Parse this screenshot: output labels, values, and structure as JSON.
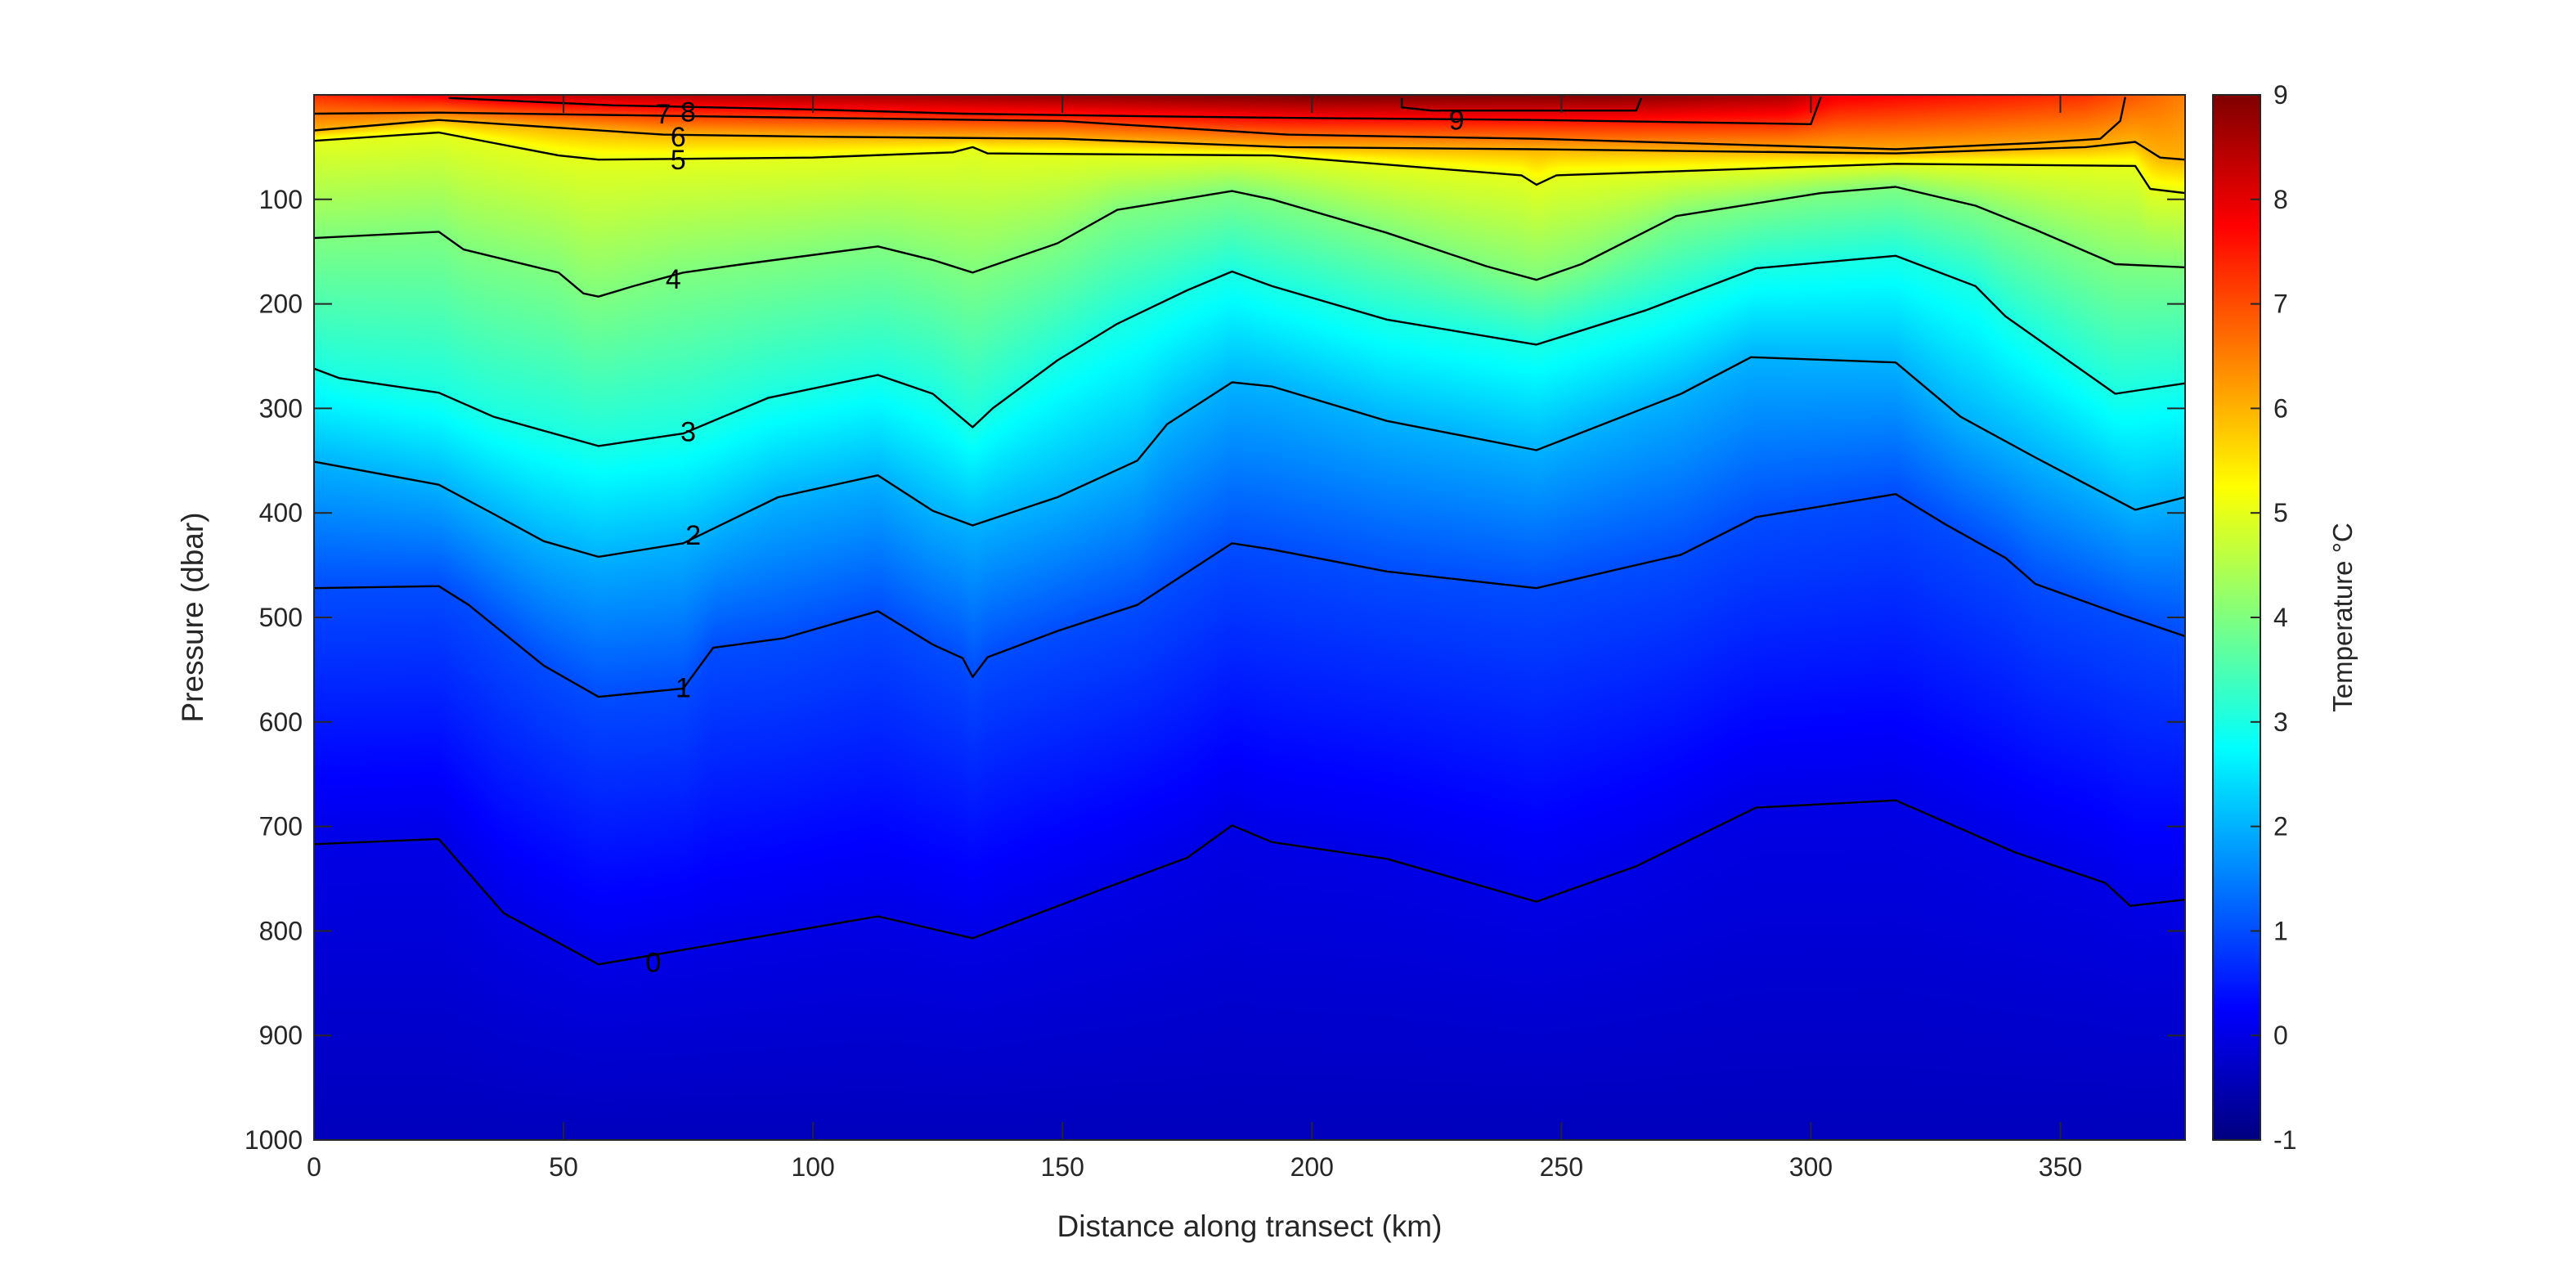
{
  "chart_data": {
    "type": "heatmap",
    "title": "",
    "xlabel": "Distance along transect (km)",
    "ylabel": "Pressure (dbar)",
    "colorbar_label": "Temperature °C",
    "colormap": "jet",
    "xlim": [
      0,
      375
    ],
    "ylim": [
      0,
      1000
    ],
    "y_reversed": true,
    "grid": false,
    "xticks": [
      "0",
      "50",
      "100",
      "150",
      "200",
      "250",
      "300",
      "350"
    ],
    "yticks": [
      "100",
      "200",
      "300",
      "400",
      "500",
      "600",
      "700",
      "800",
      "900",
      "1000"
    ],
    "colorbar": {
      "range": [
        -1,
        9
      ],
      "ticks": [
        "-1",
        "0",
        "1",
        "2",
        "3",
        "4",
        "5",
        "6",
        "7",
        "8",
        "9"
      ]
    },
    "surface_temperature": [
      [
        0,
        7.3
      ],
      [
        20,
        7.8
      ],
      [
        40,
        8.3
      ],
      [
        100,
        8.6
      ],
      [
        200,
        9.1
      ],
      [
        260,
        9.0
      ],
      [
        295,
        8.6
      ],
      [
        305,
        7.9
      ],
      [
        330,
        7.6
      ],
      [
        355,
        7.3
      ],
      [
        375,
        6.5
      ]
    ],
    "bottom_temperature": -0.4,
    "isotherms": [
      {
        "level": 0,
        "label": "0",
        "label_at": [
          68,
          830
        ],
        "points": [
          [
            0,
            717
          ],
          [
            25,
            712
          ],
          [
            38,
            783
          ],
          [
            57,
            832
          ],
          [
            113,
            786
          ],
          [
            132,
            807
          ],
          [
            158,
            760
          ],
          [
            175,
            730
          ],
          [
            184,
            699
          ],
          [
            192,
            715
          ],
          [
            215,
            731
          ],
          [
            245,
            772
          ],
          [
            265,
            738
          ],
          [
            289,
            682
          ],
          [
            317,
            675
          ],
          [
            341,
            725
          ],
          [
            359,
            754
          ],
          [
            364,
            776
          ],
          [
            375,
            770
          ]
        ]
      },
      {
        "level": 1,
        "label": "1",
        "label_at": [
          74,
          567
        ],
        "points": [
          [
            0,
            472
          ],
          [
            25,
            470
          ],
          [
            31,
            488
          ],
          [
            46,
            546
          ],
          [
            57,
            576
          ],
          [
            74,
            568
          ],
          [
            80,
            529
          ],
          [
            94,
            520
          ],
          [
            113,
            494
          ],
          [
            124,
            526
          ],
          [
            130,
            539
          ],
          [
            132,
            557
          ],
          [
            135,
            538
          ],
          [
            149,
            513
          ],
          [
            165,
            488
          ],
          [
            184,
            429
          ],
          [
            192,
            435
          ],
          [
            215,
            456
          ],
          [
            245,
            472
          ],
          [
            274,
            440
          ],
          [
            289,
            404
          ],
          [
            317,
            382
          ],
          [
            327,
            411
          ],
          [
            339,
            443
          ],
          [
            345,
            468
          ],
          [
            362,
            497
          ],
          [
            375,
            518
          ]
        ]
      },
      {
        "level": 2,
        "label": "2",
        "label_at": [
          76,
          421
        ],
        "points": [
          [
            0,
            351
          ],
          [
            25,
            373
          ],
          [
            36,
            401
          ],
          [
            46,
            427
          ],
          [
            57,
            442
          ],
          [
            74,
            429
          ],
          [
            93,
            385
          ],
          [
            113,
            364
          ],
          [
            124,
            398
          ],
          [
            132,
            412
          ],
          [
            149,
            385
          ],
          [
            165,
            350
          ],
          [
            171,
            315
          ],
          [
            184,
            275
          ],
          [
            192,
            279
          ],
          [
            215,
            312
          ],
          [
            245,
            340
          ],
          [
            274,
            286
          ],
          [
            288,
            251
          ],
          [
            317,
            256
          ],
          [
            330,
            308
          ],
          [
            345,
            347
          ],
          [
            365,
            397
          ],
          [
            375,
            385
          ]
        ]
      },
      {
        "level": 3,
        "label": "3",
        "label_at": [
          75,
          322
        ],
        "points": [
          [
            0,
            262
          ],
          [
            5,
            271
          ],
          [
            25,
            285
          ],
          [
            36,
            308
          ],
          [
            57,
            336
          ],
          [
            74,
            324
          ],
          [
            91,
            290
          ],
          [
            113,
            268
          ],
          [
            124,
            286
          ],
          [
            132,
            318
          ],
          [
            136,
            300
          ],
          [
            149,
            254
          ],
          [
            161,
            219
          ],
          [
            175,
            187
          ],
          [
            184,
            169
          ],
          [
            192,
            183
          ],
          [
            215,
            215
          ],
          [
            245,
            239
          ],
          [
            267,
            206
          ],
          [
            289,
            166
          ],
          [
            317,
            154
          ],
          [
            333,
            183
          ],
          [
            339,
            212
          ],
          [
            361,
            286
          ],
          [
            375,
            276
          ]
        ]
      },
      {
        "level": 4,
        "label": "4",
        "label_at": [
          72,
          176
        ],
        "points": [
          [
            0,
            137
          ],
          [
            25,
            131
          ],
          [
            30,
            148
          ],
          [
            49,
            170
          ],
          [
            54,
            190
          ],
          [
            57,
            193
          ],
          [
            64,
            183
          ],
          [
            74,
            170
          ],
          [
            86,
            162
          ],
          [
            113,
            145
          ],
          [
            124,
            158
          ],
          [
            132,
            170
          ],
          [
            149,
            142
          ],
          [
            161,
            110
          ],
          [
            184,
            92
          ],
          [
            192,
            100
          ],
          [
            215,
            132
          ],
          [
            235,
            164
          ],
          [
            245,
            177
          ],
          [
            254,
            162
          ],
          [
            273,
            116
          ],
          [
            302,
            94
          ],
          [
            317,
            88
          ],
          [
            333,
            106
          ],
          [
            345,
            129
          ],
          [
            361,
            162
          ],
          [
            375,
            165
          ]
        ]
      },
      {
        "level": 5,
        "label": "5",
        "label_at": [
          73,
          62
        ],
        "points": [
          [
            0,
            44
          ],
          [
            25,
            36
          ],
          [
            49,
            58
          ],
          [
            57,
            62
          ],
          [
            100,
            60
          ],
          [
            128,
            55
          ],
          [
            132,
            50
          ],
          [
            135,
            56
          ],
          [
            192,
            58
          ],
          [
            242,
            77
          ],
          [
            245,
            86
          ],
          [
            249,
            77
          ],
          [
            317,
            66
          ],
          [
            365,
            68
          ],
          [
            368,
            90
          ],
          [
            375,
            94
          ]
        ]
      },
      {
        "level": 6,
        "label": "6",
        "label_at": [
          73,
          40
        ],
        "points": [
          [
            0,
            34
          ],
          [
            25,
            24
          ],
          [
            70,
            38
          ],
          [
            100,
            40
          ],
          [
            150,
            42
          ],
          [
            195,
            50
          ],
          [
            245,
            52
          ],
          [
            317,
            56
          ],
          [
            355,
            50
          ],
          [
            365,
            45
          ],
          [
            370,
            60
          ],
          [
            375,
            62
          ]
        ]
      },
      {
        "level": 7,
        "label": "7",
        "label_at": [
          70,
          18
        ],
        "points": [
          [
            0,
            18
          ],
          [
            25,
            17
          ],
          [
            100,
            22
          ],
          [
            150,
            25
          ],
          [
            195,
            38
          ],
          [
            245,
            42
          ],
          [
            317,
            52
          ],
          [
            345,
            46
          ],
          [
            358,
            42
          ],
          [
            362,
            25
          ],
          [
            363,
            2
          ]
        ]
      },
      {
        "level": 8,
        "label": "8",
        "label_at": [
          75,
          16
        ],
        "points": [
          [
            27,
            3
          ],
          [
            60,
            10
          ],
          [
            100,
            14
          ],
          [
            130,
            18
          ],
          [
            160,
            20
          ],
          [
            195,
            22
          ],
          [
            245,
            24
          ],
          [
            300,
            28
          ],
          [
            302,
            2
          ]
        ]
      },
      {
        "level": 9,
        "label": "9",
        "label_at": [
          229,
          24
        ],
        "points": [
          [
            218,
            3
          ],
          [
            218,
            12
          ],
          [
            224,
            15
          ],
          [
            265,
            15
          ],
          [
            266,
            3
          ]
        ]
      }
    ]
  }
}
